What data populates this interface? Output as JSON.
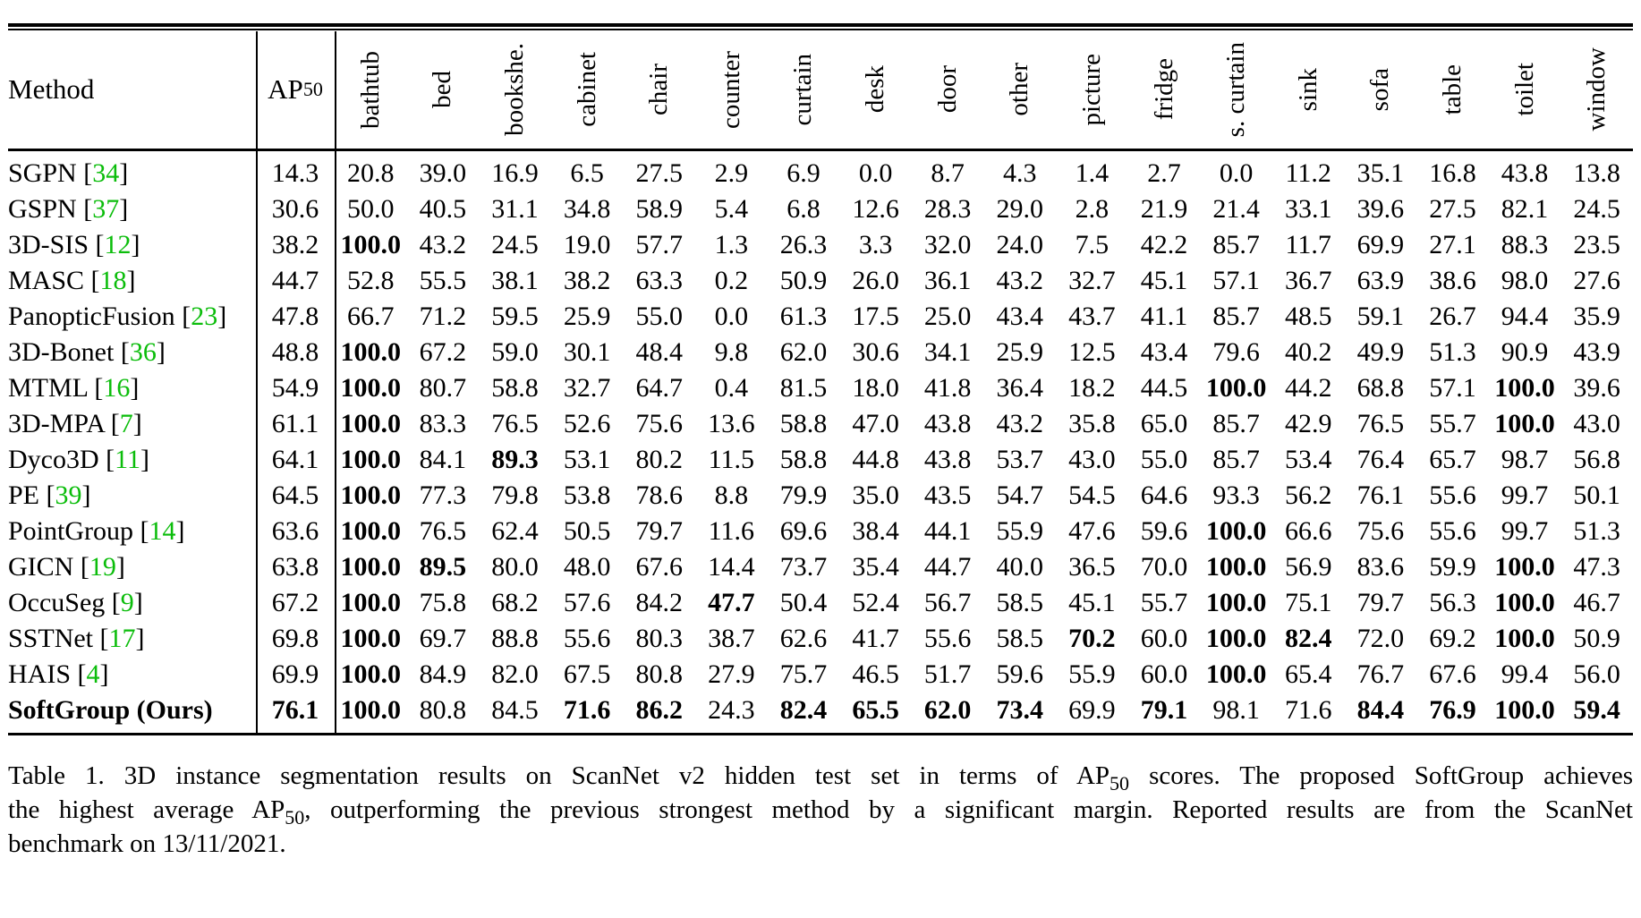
{
  "colors": {
    "citation_green": "#0bbd0b",
    "text": "#000000",
    "background": "#ffffff"
  },
  "misc": {
    "bracket_open": "[",
    "bracket_close": "]",
    "space": " "
  },
  "table": {
    "header": {
      "method_label": "Method",
      "ap_label": "AP",
      "ap_sub": "50",
      "categories": [
        "bathtub",
        "bed",
        "bookshe.",
        "cabinet",
        "chair",
        "counter",
        "curtain",
        "desk",
        "door",
        "other",
        "picture",
        "fridge",
        "s. curtain",
        "sink",
        "sofa",
        "table",
        "toilet",
        "window"
      ]
    },
    "rows": [
      {
        "method": "SGPN",
        "ref": "34",
        "method_bold": false,
        "ap50": "14.3",
        "ap50_bold": false,
        "values": [
          "20.8",
          "39.0",
          "16.9",
          "6.5",
          "27.5",
          "2.9",
          "6.9",
          "0.0",
          "8.7",
          "4.3",
          "1.4",
          "2.7",
          "0.0",
          "11.2",
          "35.1",
          "16.8",
          "43.8",
          "13.8"
        ],
        "bold": []
      },
      {
        "method": "GSPN",
        "ref": "37",
        "method_bold": false,
        "ap50": "30.6",
        "ap50_bold": false,
        "values": [
          "50.0",
          "40.5",
          "31.1",
          "34.8",
          "58.9",
          "5.4",
          "6.8",
          "12.6",
          "28.3",
          "29.0",
          "2.8",
          "21.9",
          "21.4",
          "33.1",
          "39.6",
          "27.5",
          "82.1",
          "24.5"
        ],
        "bold": []
      },
      {
        "method": "3D-SIS",
        "ref": "12",
        "method_bold": false,
        "ap50": "38.2",
        "ap50_bold": false,
        "values": [
          "100.0",
          "43.2",
          "24.5",
          "19.0",
          "57.7",
          "1.3",
          "26.3",
          "3.3",
          "32.0",
          "24.0",
          "7.5",
          "42.2",
          "85.7",
          "11.7",
          "69.9",
          "27.1",
          "88.3",
          "23.5"
        ],
        "bold": [
          0
        ]
      },
      {
        "method": "MASC",
        "ref": "18",
        "method_bold": false,
        "ap50": "44.7",
        "ap50_bold": false,
        "values": [
          "52.8",
          "55.5",
          "38.1",
          "38.2",
          "63.3",
          "0.2",
          "50.9",
          "26.0",
          "36.1",
          "43.2",
          "32.7",
          "45.1",
          "57.1",
          "36.7",
          "63.9",
          "38.6",
          "98.0",
          "27.6"
        ],
        "bold": []
      },
      {
        "method": "PanopticFusion",
        "ref": "23",
        "method_bold": false,
        "ap50": "47.8",
        "ap50_bold": false,
        "values": [
          "66.7",
          "71.2",
          "59.5",
          "25.9",
          "55.0",
          "0.0",
          "61.3",
          "17.5",
          "25.0",
          "43.4",
          "43.7",
          "41.1",
          "85.7",
          "48.5",
          "59.1",
          "26.7",
          "94.4",
          "35.9"
        ],
        "bold": []
      },
      {
        "method": "3D-Bonet",
        "ref": "36",
        "method_bold": false,
        "ap50": "48.8",
        "ap50_bold": false,
        "values": [
          "100.0",
          "67.2",
          "59.0",
          "30.1",
          "48.4",
          "9.8",
          "62.0",
          "30.6",
          "34.1",
          "25.9",
          "12.5",
          "43.4",
          "79.6",
          "40.2",
          "49.9",
          "51.3",
          "90.9",
          "43.9"
        ],
        "bold": [
          0
        ]
      },
      {
        "method": "MTML",
        "ref": "16",
        "method_bold": false,
        "ap50": "54.9",
        "ap50_bold": false,
        "values": [
          "100.0",
          "80.7",
          "58.8",
          "32.7",
          "64.7",
          "0.4",
          "81.5",
          "18.0",
          "41.8",
          "36.4",
          "18.2",
          "44.5",
          "100.0",
          "44.2",
          "68.8",
          "57.1",
          "100.0",
          "39.6"
        ],
        "bold": [
          0,
          12,
          16
        ]
      },
      {
        "method": "3D-MPA",
        "ref": "7",
        "method_bold": false,
        "ap50": "61.1",
        "ap50_bold": false,
        "values": [
          "100.0",
          "83.3",
          "76.5",
          "52.6",
          "75.6",
          "13.6",
          "58.8",
          "47.0",
          "43.8",
          "43.2",
          "35.8",
          "65.0",
          "85.7",
          "42.9",
          "76.5",
          "55.7",
          "100.0",
          "43.0"
        ],
        "bold": [
          0,
          16
        ]
      },
      {
        "method": "Dyco3D",
        "ref": "11",
        "method_bold": false,
        "ap50": "64.1",
        "ap50_bold": false,
        "values": [
          "100.0",
          "84.1",
          "89.3",
          "53.1",
          "80.2",
          "11.5",
          "58.8",
          "44.8",
          "43.8",
          "53.7",
          "43.0",
          "55.0",
          "85.7",
          "53.4",
          "76.4",
          "65.7",
          "98.7",
          "56.8"
        ],
        "bold": [
          0,
          2
        ]
      },
      {
        "method": "PE",
        "ref": "39",
        "method_bold": false,
        "ap50": "64.5",
        "ap50_bold": false,
        "values": [
          "100.0",
          "77.3",
          "79.8",
          "53.8",
          "78.6",
          "8.8",
          "79.9",
          "35.0",
          "43.5",
          "54.7",
          "54.5",
          "64.6",
          "93.3",
          "56.2",
          "76.1",
          "55.6",
          "99.7",
          "50.1"
        ],
        "bold": [
          0
        ]
      },
      {
        "method": "PointGroup",
        "ref": "14",
        "method_bold": false,
        "ap50": "63.6",
        "ap50_bold": false,
        "values": [
          "100.0",
          "76.5",
          "62.4",
          "50.5",
          "79.7",
          "11.6",
          "69.6",
          "38.4",
          "44.1",
          "55.9",
          "47.6",
          "59.6",
          "100.0",
          "66.6",
          "75.6",
          "55.6",
          "99.7",
          "51.3"
        ],
        "bold": [
          0,
          12
        ]
      },
      {
        "method": "GICN",
        "ref": "19",
        "method_bold": false,
        "ap50": "63.8",
        "ap50_bold": false,
        "values": [
          "100.0",
          "89.5",
          "80.0",
          "48.0",
          "67.6",
          "14.4",
          "73.7",
          "35.4",
          "44.7",
          "40.0",
          "36.5",
          "70.0",
          "100.0",
          "56.9",
          "83.6",
          "59.9",
          "100.0",
          "47.3"
        ],
        "bold": [
          0,
          1,
          12,
          16
        ]
      },
      {
        "method": "OccuSeg",
        "ref": "9",
        "method_bold": false,
        "ap50": "67.2",
        "ap50_bold": false,
        "values": [
          "100.0",
          "75.8",
          "68.2",
          "57.6",
          "84.2",
          "47.7",
          "50.4",
          "52.4",
          "56.7",
          "58.5",
          "45.1",
          "55.7",
          "100.0",
          "75.1",
          "79.7",
          "56.3",
          "100.0",
          "46.7"
        ],
        "bold": [
          0,
          5,
          12,
          16
        ]
      },
      {
        "method": "SSTNet",
        "ref": "17",
        "method_bold": false,
        "ap50": "69.8",
        "ap50_bold": false,
        "values": [
          "100.0",
          "69.7",
          "88.8",
          "55.6",
          "80.3",
          "38.7",
          "62.6",
          "41.7",
          "55.6",
          "58.5",
          "70.2",
          "60.0",
          "100.0",
          "82.4",
          "72.0",
          "69.2",
          "100.0",
          "50.9"
        ],
        "bold": [
          0,
          10,
          12,
          13,
          16
        ]
      },
      {
        "method": "HAIS",
        "ref": "4",
        "method_bold": false,
        "ap50": "69.9",
        "ap50_bold": false,
        "values": [
          "100.0",
          "84.9",
          "82.0",
          "67.5",
          "80.8",
          "27.9",
          "75.7",
          "46.5",
          "51.7",
          "59.6",
          "55.9",
          "60.0",
          "100.0",
          "65.4",
          "76.7",
          "67.6",
          "99.4",
          "56.0"
        ],
        "bold": [
          0,
          12
        ]
      },
      {
        "method": "SoftGroup (Ours)",
        "ref": null,
        "method_bold": true,
        "ap50": "76.1",
        "ap50_bold": true,
        "values": [
          "100.0",
          "80.8",
          "84.5",
          "71.6",
          "86.2",
          "24.3",
          "82.4",
          "65.5",
          "62.0",
          "73.4",
          "69.9",
          "79.1",
          "98.1",
          "71.6",
          "84.4",
          "76.9",
          "100.0",
          "59.4"
        ],
        "bold": [
          0,
          3,
          4,
          6,
          7,
          8,
          9,
          11,
          14,
          15,
          16,
          17
        ]
      }
    ]
  },
  "caption": {
    "line1_pre": "Table 1.  3D instance segmentation results on ScanNet v2 hidden test set in terms of AP",
    "line1_sub": "50",
    "line1_post": " scores.  The proposed SoftGroup achieves",
    "line2_pre": "the highest average AP",
    "line2_sub": "50",
    "line2_post": ", outperforming the previous strongest method by a significant margin.  Reported results are from the ScanNet",
    "line3": "benchmark on 13/11/2021."
  }
}
